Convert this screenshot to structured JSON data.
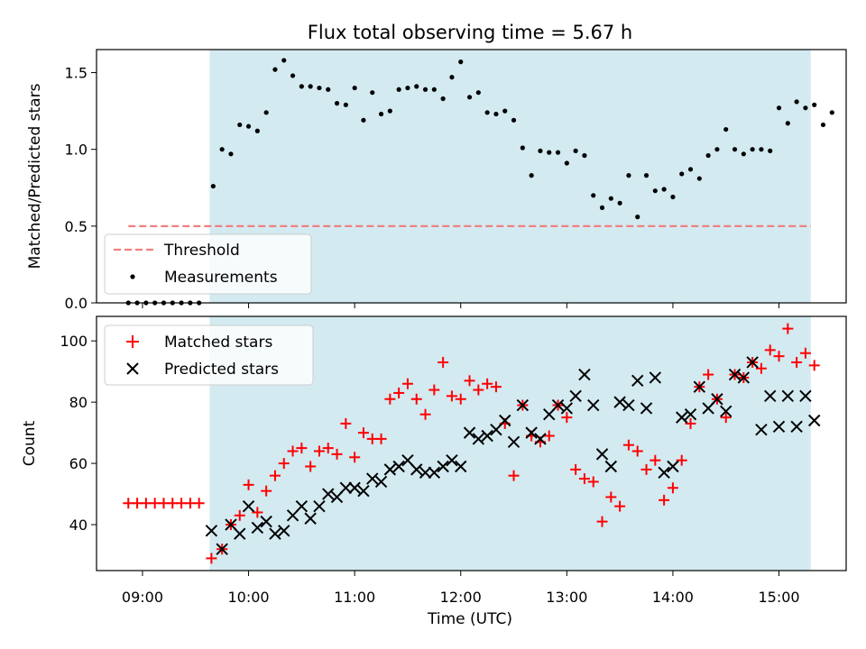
{
  "chart_data": [
    {
      "type": "scatter",
      "panel": "top",
      "title": "Flux total observing time = 5.67 h",
      "xlabel": "",
      "ylabel": "Matched/Predicted stars",
      "ylim": [
        0,
        1.65
      ],
      "yticks": [
        0.0,
        0.5,
        1.0,
        1.5
      ],
      "ytick_labels": [
        "0.0",
        "0.5",
        "1.0",
        "1.5"
      ],
      "shaded_region": {
        "x_start": "09:38",
        "x_end": "15:18",
        "color": "#d3eaf1"
      },
      "threshold": {
        "name": "Threshold",
        "y": 0.5,
        "x_start": "08:52",
        "x_end": "15:18",
        "color": "#f08080"
      },
      "legend": {
        "placement": "lower-left"
      },
      "series": [
        {
          "name": "Measurements",
          "color": "#000000",
          "points": [
            [
              "08:52",
              0.0
            ],
            [
              "08:57",
              0.0
            ],
            [
              "09:02",
              0.0
            ],
            [
              "09:07",
              0.0
            ],
            [
              "09:12",
              0.0
            ],
            [
              "09:17",
              0.0
            ],
            [
              "09:22",
              0.0
            ],
            [
              "09:27",
              0.0
            ],
            [
              "09:32",
              0.0
            ],
            [
              "09:40",
              0.76
            ],
            [
              "09:45",
              1.0
            ],
            [
              "09:50",
              0.97
            ],
            [
              "09:55",
              1.16
            ],
            [
              "10:00",
              1.15
            ],
            [
              "10:05",
              1.12
            ],
            [
              "10:10",
              1.24
            ],
            [
              "10:15",
              1.52
            ],
            [
              "10:20",
              1.58
            ],
            [
              "10:25",
              1.48
            ],
            [
              "10:30",
              1.41
            ],
            [
              "10:35",
              1.41
            ],
            [
              "10:40",
              1.4
            ],
            [
              "10:45",
              1.39
            ],
            [
              "10:50",
              1.3
            ],
            [
              "10:55",
              1.29
            ],
            [
              "11:00",
              1.4
            ],
            [
              "11:05",
              1.19
            ],
            [
              "11:10",
              1.37
            ],
            [
              "11:15",
              1.23
            ],
            [
              "11:20",
              1.25
            ],
            [
              "11:25",
              1.39
            ],
            [
              "11:30",
              1.4
            ],
            [
              "11:35",
              1.41
            ],
            [
              "11:40",
              1.39
            ],
            [
              "11:45",
              1.39
            ],
            [
              "11:50",
              1.33
            ],
            [
              "11:55",
              1.47
            ],
            [
              "12:00",
              1.57
            ],
            [
              "12:05",
              1.34
            ],
            [
              "12:10",
              1.37
            ],
            [
              "12:15",
              1.24
            ],
            [
              "12:20",
              1.23
            ],
            [
              "12:25",
              1.25
            ],
            [
              "12:30",
              1.19
            ],
            [
              "12:35",
              1.01
            ],
            [
              "12:40",
              0.83
            ],
            [
              "12:45",
              0.99
            ],
            [
              "12:50",
              0.98
            ],
            [
              "12:55",
              0.98
            ],
            [
              "13:00",
              0.91
            ],
            [
              "13:05",
              0.99
            ],
            [
              "13:10",
              0.96
            ],
            [
              "13:15",
              0.7
            ],
            [
              "13:20",
              0.62
            ],
            [
              "13:25",
              0.68
            ],
            [
              "13:30",
              0.65
            ],
            [
              "13:35",
              0.83
            ],
            [
              "13:40",
              0.56
            ],
            [
              "13:45",
              0.83
            ],
            [
              "13:50",
              0.73
            ],
            [
              "13:55",
              0.74
            ],
            [
              "14:00",
              0.69
            ],
            [
              "14:05",
              0.84
            ],
            [
              "14:10",
              0.87
            ],
            [
              "14:15",
              0.81
            ],
            [
              "14:20",
              0.96
            ],
            [
              "14:25",
              1.0
            ],
            [
              "14:30",
              1.13
            ],
            [
              "14:35",
              1.0
            ],
            [
              "14:40",
              0.97
            ],
            [
              "14:45",
              1.0
            ],
            [
              "14:50",
              1.0
            ],
            [
              "14:55",
              0.99
            ],
            [
              "15:00",
              1.27
            ],
            [
              "15:05",
              1.17
            ],
            [
              "15:10",
              1.31
            ],
            [
              "15:15",
              1.27
            ],
            [
              "15:20",
              1.29
            ],
            [
              "15:25",
              1.16
            ],
            [
              "15:30",
              1.24
            ]
          ]
        }
      ]
    },
    {
      "type": "scatter",
      "panel": "bottom",
      "title": "",
      "xlabel": "Time (UTC)",
      "ylabel": "Count",
      "xlim": [
        "08:34",
        "15:38"
      ],
      "ylim": [
        25,
        108
      ],
      "xticks": [
        "09:00",
        "10:00",
        "11:00",
        "12:00",
        "13:00",
        "14:00",
        "15:00"
      ],
      "yticks": [
        40,
        60,
        80,
        100
      ],
      "ytick_labels": [
        "40",
        "60",
        "80",
        "100"
      ],
      "shaded_region": {
        "x_start": "09:38",
        "x_end": "15:18",
        "color": "#d3eaf1"
      },
      "legend": {
        "placement": "upper-left"
      },
      "series": [
        {
          "name": "Matched stars",
          "marker": "plus",
          "color": "#ff0000",
          "points": [
            [
              "08:52",
              47
            ],
            [
              "08:57",
              47
            ],
            [
              "09:02",
              47
            ],
            [
              "09:07",
              47
            ],
            [
              "09:12",
              47
            ],
            [
              "09:17",
              47
            ],
            [
              "09:22",
              47
            ],
            [
              "09:27",
              47
            ],
            [
              "09:32",
              47
            ],
            [
              "09:39",
              29
            ],
            [
              "09:45",
              32
            ],
            [
              "09:50",
              40
            ],
            [
              "09:55",
              43
            ],
            [
              "10:00",
              53
            ],
            [
              "10:05",
              44
            ],
            [
              "10:10",
              51
            ],
            [
              "10:15",
              56
            ],
            [
              "10:20",
              60
            ],
            [
              "10:25",
              64
            ],
            [
              "10:30",
              65
            ],
            [
              "10:35",
              59
            ],
            [
              "10:40",
              64
            ],
            [
              "10:45",
              65
            ],
            [
              "10:50",
              63
            ],
            [
              "10:55",
              73
            ],
            [
              "11:00",
              62
            ],
            [
              "11:05",
              70
            ],
            [
              "11:10",
              68
            ],
            [
              "11:15",
              68
            ],
            [
              "11:20",
              81
            ],
            [
              "11:25",
              83
            ],
            [
              "11:30",
              86
            ],
            [
              "11:35",
              81
            ],
            [
              "11:40",
              76
            ],
            [
              "11:45",
              84
            ],
            [
              "11:50",
              93
            ],
            [
              "11:55",
              82
            ],
            [
              "12:00",
              81
            ],
            [
              "12:05",
              87
            ],
            [
              "12:10",
              84
            ],
            [
              "12:15",
              86
            ],
            [
              "12:20",
              85
            ],
            [
              "12:25",
              73
            ],
            [
              "12:30",
              56
            ],
            [
              "12:35",
              79
            ],
            [
              "12:40",
              69
            ],
            [
              "12:45",
              67
            ],
            [
              "12:50",
              69
            ],
            [
              "12:55",
              79
            ],
            [
              "13:00",
              75
            ],
            [
              "13:05",
              58
            ],
            [
              "13:10",
              55
            ],
            [
              "13:15",
              54
            ],
            [
              "13:20",
              41
            ],
            [
              "13:25",
              49
            ],
            [
              "13:30",
              46
            ],
            [
              "13:35",
              66
            ],
            [
              "13:40",
              64
            ],
            [
              "13:45",
              58
            ],
            [
              "13:50",
              61
            ],
            [
              "13:55",
              48
            ],
            [
              "14:00",
              52
            ],
            [
              "14:05",
              61
            ],
            [
              "14:10",
              73
            ],
            [
              "14:15",
              85
            ],
            [
              "14:20",
              89
            ],
            [
              "14:25",
              81
            ],
            [
              "14:30",
              75
            ],
            [
              "14:35",
              89
            ],
            [
              "14:40",
              88
            ],
            [
              "14:45",
              93
            ],
            [
              "14:50",
              91
            ],
            [
              "14:55",
              97
            ],
            [
              "15:00",
              95
            ],
            [
              "15:05",
              104
            ],
            [
              "15:10",
              93
            ],
            [
              "15:15",
              96
            ],
            [
              "15:20",
              92
            ]
          ]
        },
        {
          "name": "Predicted stars",
          "marker": "x",
          "color": "#000000",
          "points": [
            [
              "09:39",
              38
            ],
            [
              "09:45",
              32
            ],
            [
              "09:50",
              40
            ],
            [
              "09:55",
              37
            ],
            [
              "10:00",
              46
            ],
            [
              "10:05",
              39
            ],
            [
              "10:10",
              41
            ],
            [
              "10:15",
              37
            ],
            [
              "10:20",
              38
            ],
            [
              "10:25",
              43
            ],
            [
              "10:30",
              46
            ],
            [
              "10:35",
              42
            ],
            [
              "10:40",
              46
            ],
            [
              "10:45",
              50
            ],
            [
              "10:50",
              49
            ],
            [
              "10:55",
              52
            ],
            [
              "11:00",
              52
            ],
            [
              "11:05",
              51
            ],
            [
              "11:10",
              55
            ],
            [
              "11:15",
              54
            ],
            [
              "11:20",
              58
            ],
            [
              "11:25",
              59
            ],
            [
              "11:30",
              61
            ],
            [
              "11:35",
              58
            ],
            [
              "11:40",
              57
            ],
            [
              "11:45",
              57
            ],
            [
              "11:50",
              59
            ],
            [
              "11:55",
              61
            ],
            [
              "12:00",
              59
            ],
            [
              "12:05",
              70
            ],
            [
              "12:10",
              68
            ],
            [
              "12:15",
              69
            ],
            [
              "12:20",
              71
            ],
            [
              "12:25",
              74
            ],
            [
              "12:30",
              67
            ],
            [
              "12:35",
              79
            ],
            [
              "12:40",
              70
            ],
            [
              "12:45",
              68
            ],
            [
              "12:50",
              76
            ],
            [
              "12:55",
              79
            ],
            [
              "13:00",
              78
            ],
            [
              "13:05",
              82
            ],
            [
              "13:10",
              89
            ],
            [
              "13:15",
              79
            ],
            [
              "13:20",
              63
            ],
            [
              "13:25",
              59
            ],
            [
              "13:30",
              80
            ],
            [
              "13:35",
              79
            ],
            [
              "13:40",
              87
            ],
            [
              "13:45",
              78
            ],
            [
              "13:50",
              88
            ],
            [
              "13:55",
              57
            ],
            [
              "14:00",
              59
            ],
            [
              "14:05",
              75
            ],
            [
              "14:10",
              76
            ],
            [
              "14:15",
              85
            ],
            [
              "14:20",
              78
            ],
            [
              "14:25",
              81
            ],
            [
              "14:30",
              77
            ],
            [
              "14:35",
              89
            ],
            [
              "14:40",
              88
            ],
            [
              "14:45",
              93
            ],
            [
              "14:50",
              71
            ],
            [
              "14:55",
              82
            ],
            [
              "15:00",
              72
            ],
            [
              "15:05",
              82
            ],
            [
              "15:10",
              72
            ],
            [
              "15:15",
              82
            ],
            [
              "15:20",
              74
            ]
          ]
        }
      ]
    }
  ]
}
